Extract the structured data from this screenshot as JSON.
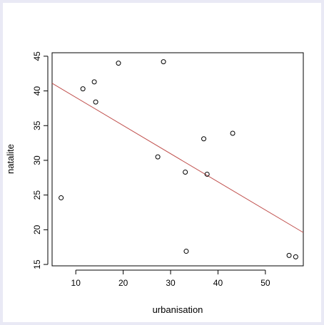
{
  "chart_data": {
    "type": "scatter",
    "title": "",
    "xlabel": "urbanisation",
    "ylabel": "natalite",
    "xlim": [
      5,
      58
    ],
    "ylim": [
      14.8,
      45.5
    ],
    "xticks": [
      10,
      20,
      30,
      40,
      50
    ],
    "yticks": [
      15,
      20,
      25,
      30,
      35,
      40,
      45
    ],
    "xtick_labels": [
      "10",
      "20",
      "30",
      "40",
      "50"
    ],
    "ytick_labels": [
      "15",
      "20",
      "25",
      "30",
      "35",
      "40",
      "45"
    ],
    "grid": false,
    "series": [
      {
        "points": [
          {
            "x": 6.9,
            "y": 24.6
          },
          {
            "x": 11.5,
            "y": 40.3
          },
          {
            "x": 13.9,
            "y": 41.3
          },
          {
            "x": 14.2,
            "y": 38.4
          },
          {
            "x": 19.0,
            "y": 44.0
          },
          {
            "x": 27.3,
            "y": 30.5
          },
          {
            "x": 28.5,
            "y": 44.2
          },
          {
            "x": 33.1,
            "y": 28.3
          },
          {
            "x": 33.3,
            "y": 16.9
          },
          {
            "x": 37.0,
            "y": 33.1
          },
          {
            "x": 37.7,
            "y": 28.0
          },
          {
            "x": 43.1,
            "y": 33.9
          },
          {
            "x": 55.0,
            "y": 16.3
          },
          {
            "x": 56.4,
            "y": 16.1
          }
        ],
        "color": "#000000"
      }
    ],
    "fit_line": {
      "x": [
        5,
        58
      ],
      "y": [
        41.1,
        19.6
      ],
      "color": "#c0504d"
    }
  }
}
